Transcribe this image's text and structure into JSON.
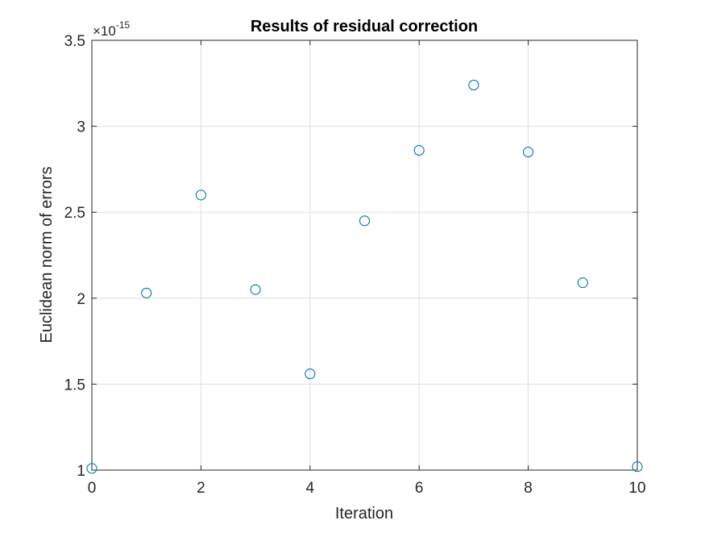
{
  "chart_data": {
    "type": "scatter",
    "title": "Results of residual correction",
    "xlabel": "Iteration",
    "ylabel": "Euclidean norm of errors",
    "y_exponent_prefix": "×10",
    "y_exponent_power": "-15",
    "xlim": [
      0,
      10
    ],
    "ylim": [
      1.0,
      3.5
    ],
    "x_ticks": [
      0,
      2,
      4,
      6,
      8,
      10
    ],
    "x_tick_labels": [
      "0",
      "2",
      "4",
      "6",
      "8",
      "10"
    ],
    "y_ticks": [
      1.0,
      1.5,
      2.0,
      2.5,
      3.0,
      3.5
    ],
    "y_tick_labels": [
      "1",
      "1.5",
      "2",
      "2.5",
      "3",
      "3.5"
    ],
    "grid": true,
    "marker": "open-circle",
    "series": [
      {
        "color": "#0072BD",
        "x": [
          0,
          1,
          2,
          3,
          4,
          5,
          6,
          7,
          8,
          9,
          10
        ],
        "y": [
          1.01,
          2.03,
          2.6,
          2.05,
          1.56,
          2.45,
          2.86,
          3.24,
          2.85,
          2.09,
          1.02
        ]
      }
    ]
  }
}
